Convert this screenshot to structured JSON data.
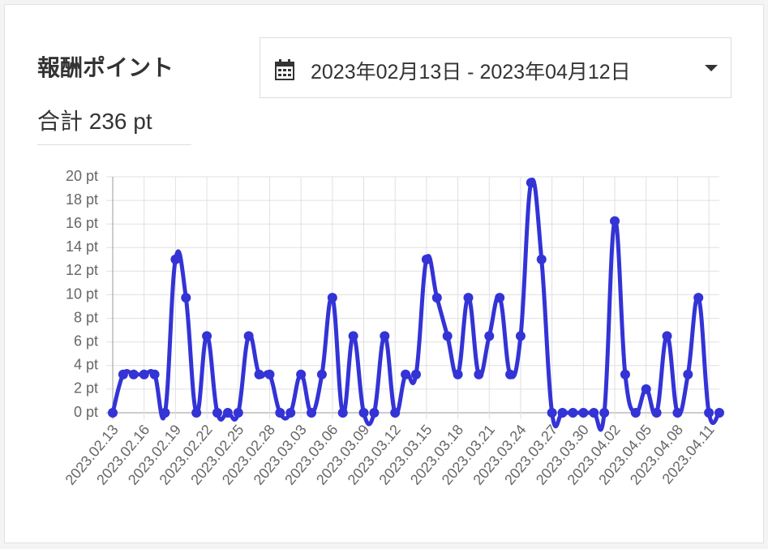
{
  "header": {
    "title": "報酬ポイント",
    "total": "合計 236 pt",
    "date_range": "2023年02月13日 - 2023年04月12日"
  },
  "chart_data": {
    "type": "line",
    "color": "#3333d6",
    "grid": true,
    "categories": [
      "2023.02.13",
      null,
      null,
      "2023.02.16",
      null,
      null,
      "2023.02.19",
      null,
      null,
      "2023.02.22",
      null,
      null,
      "2023.02.25",
      null,
      null,
      "2023.02.28",
      null,
      null,
      "2023.03.03",
      null,
      null,
      "2023.03.06",
      null,
      null,
      "2023.03.09",
      null,
      null,
      "2023.03.12",
      null,
      null,
      "2023.03.15",
      null,
      null,
      "2023.03.18",
      null,
      null,
      "2023.03.21",
      null,
      null,
      "2023.03.24",
      null,
      null,
      "2023.03.27",
      null,
      null,
      "2023.03.30",
      null,
      null,
      "2023.04.02",
      null,
      null,
      "2023.04.05",
      null,
      null,
      "2023.04.08",
      null,
      null,
      "2023.04.11",
      null
    ],
    "values": [
      0,
      3.25,
      3.25,
      3.25,
      3.25,
      0,
      13,
      9.75,
      0,
      6.5,
      0,
      0,
      0,
      6.5,
      3.25,
      3.25,
      0,
      0,
      3.25,
      0,
      3.25,
      9.75,
      0,
      6.5,
      0,
      0,
      6.5,
      0,
      3.25,
      3.25,
      13,
      9.75,
      6.5,
      3.25,
      9.75,
      3.25,
      6.5,
      9.75,
      3.25,
      6.5,
      19.5,
      13,
      0,
      0,
      0,
      0,
      0,
      0,
      16.25,
      3.25,
      0,
      2,
      0,
      6.5,
      0,
      3.25,
      9.75,
      0,
      0
    ],
    "ylim": [
      0,
      20
    ],
    "yticks": [
      {
        "value": 0,
        "label": "0 pt"
      },
      {
        "value": 2,
        "label": "2 pt"
      },
      {
        "value": 4,
        "label": "4 pt"
      },
      {
        "value": 6,
        "label": "6 pt"
      },
      {
        "value": 8,
        "label": "8 pt"
      },
      {
        "value": 10,
        "label": "10 pt"
      },
      {
        "value": 12,
        "label": "12 pt"
      },
      {
        "value": 14,
        "label": "14 pt"
      },
      {
        "value": 16,
        "label": "16 pt"
      },
      {
        "value": 18,
        "label": "18 pt"
      },
      {
        "value": 20,
        "label": "20 pt"
      }
    ]
  }
}
